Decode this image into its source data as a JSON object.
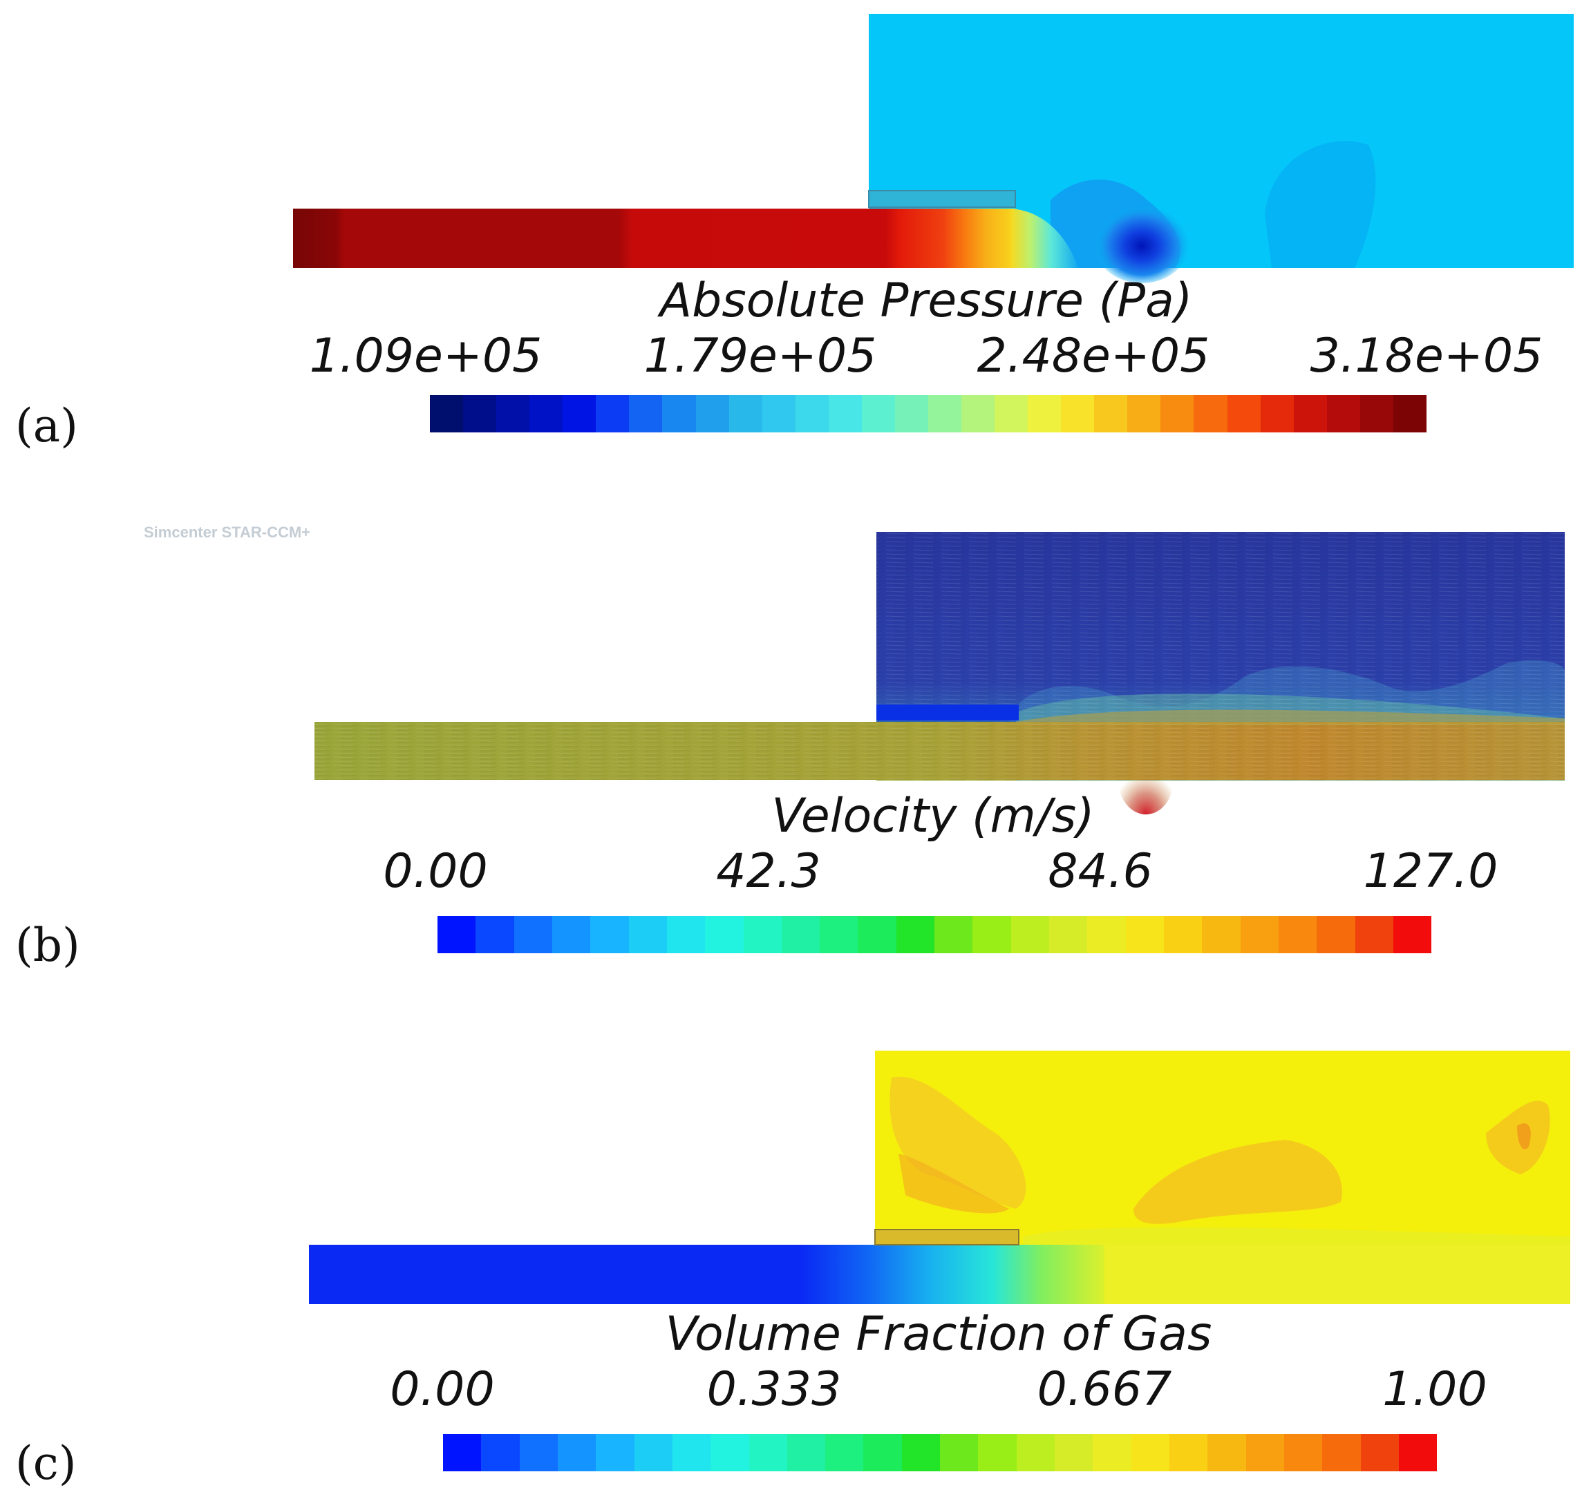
{
  "watermark": "Simcenter STAR-CCM+",
  "panels": [
    {
      "label": "(a)",
      "title": "Absolute Pressure (Pa)",
      "ticks": [
        "1.09e+05",
        "1.79e+05",
        "2.48e+05",
        "3.18e+05"
      ],
      "colorbar": [
        "#000e6e",
        "#000e8c",
        "#0010a8",
        "#0012c6",
        "#0014e4",
        "#0c3cf4",
        "#1464f4",
        "#1888f0",
        "#20a0ec",
        "#28b8ea",
        "#30c8ee",
        "#3cd8ec",
        "#48e6e6",
        "#5cf0d0",
        "#76f2b8",
        "#94f49c",
        "#b4f47c",
        "#d2f45c",
        "#eef23e",
        "#f8e22a",
        "#f8c81e",
        "#f8ac16",
        "#f88c10",
        "#f86a0e",
        "#f44a0c",
        "#e42a0a",
        "#cc140a",
        "#b40c0a",
        "#980808",
        "#7c0404"
      ],
      "colors": {
        "inlet_hot": "#780606",
        "inlet_mid": "#a40808",
        "inlet_warm": "#c60a0a",
        "background": "#05c6f9",
        "vortex": "#0b2bd0"
      }
    },
    {
      "label": "(b)",
      "title": "Velocity (m/s)",
      "ticks": [
        "0.00",
        "42.3",
        "84.6",
        "127.0"
      ],
      "colorbar": [
        "#0014ff",
        "#0a48ff",
        "#1070ff",
        "#1494ff",
        "#18b4ff",
        "#1ccef6",
        "#20e4ee",
        "#22f2e0",
        "#22f4c4",
        "#20f0a4",
        "#1ef080",
        "#1cec5c",
        "#22e428",
        "#6ce81c",
        "#98ee16",
        "#bcee20",
        "#d6ec28",
        "#ecec24",
        "#f8e41a",
        "#fad014",
        "#f8b812",
        "#f8a010",
        "#f8880e",
        "#f66c0c",
        "#f0420c",
        "#f20c0c"
      ],
      "colors": {
        "inlet": "#9ca83a",
        "background": "#2a3caa",
        "plate": "#0a30e6",
        "jet": "#c08a30"
      }
    },
    {
      "label": "(c)",
      "title": "Volume Fraction of Gas",
      "ticks": [
        "0.00",
        "0.333",
        "0.667",
        "1.00"
      ],
      "colorbar": [
        "#0014ff",
        "#0a48ff",
        "#1070ff",
        "#1494ff",
        "#18b4ff",
        "#1ccef6",
        "#20e4ee",
        "#22f2e0",
        "#22f4c4",
        "#20f0a4",
        "#1ef080",
        "#1cec5c",
        "#22e428",
        "#6ce81c",
        "#98ee16",
        "#bcee20",
        "#d6ec28",
        "#ecec24",
        "#f8e41a",
        "#fad014",
        "#f8b812",
        "#f8a010",
        "#f8880e",
        "#f66c0c",
        "#f0420c",
        "#f20c0c"
      ],
      "colors": {
        "liquid": "#0a2af4",
        "background": "#f4f00c",
        "bubble": "#f4c81c"
      }
    }
  ]
}
